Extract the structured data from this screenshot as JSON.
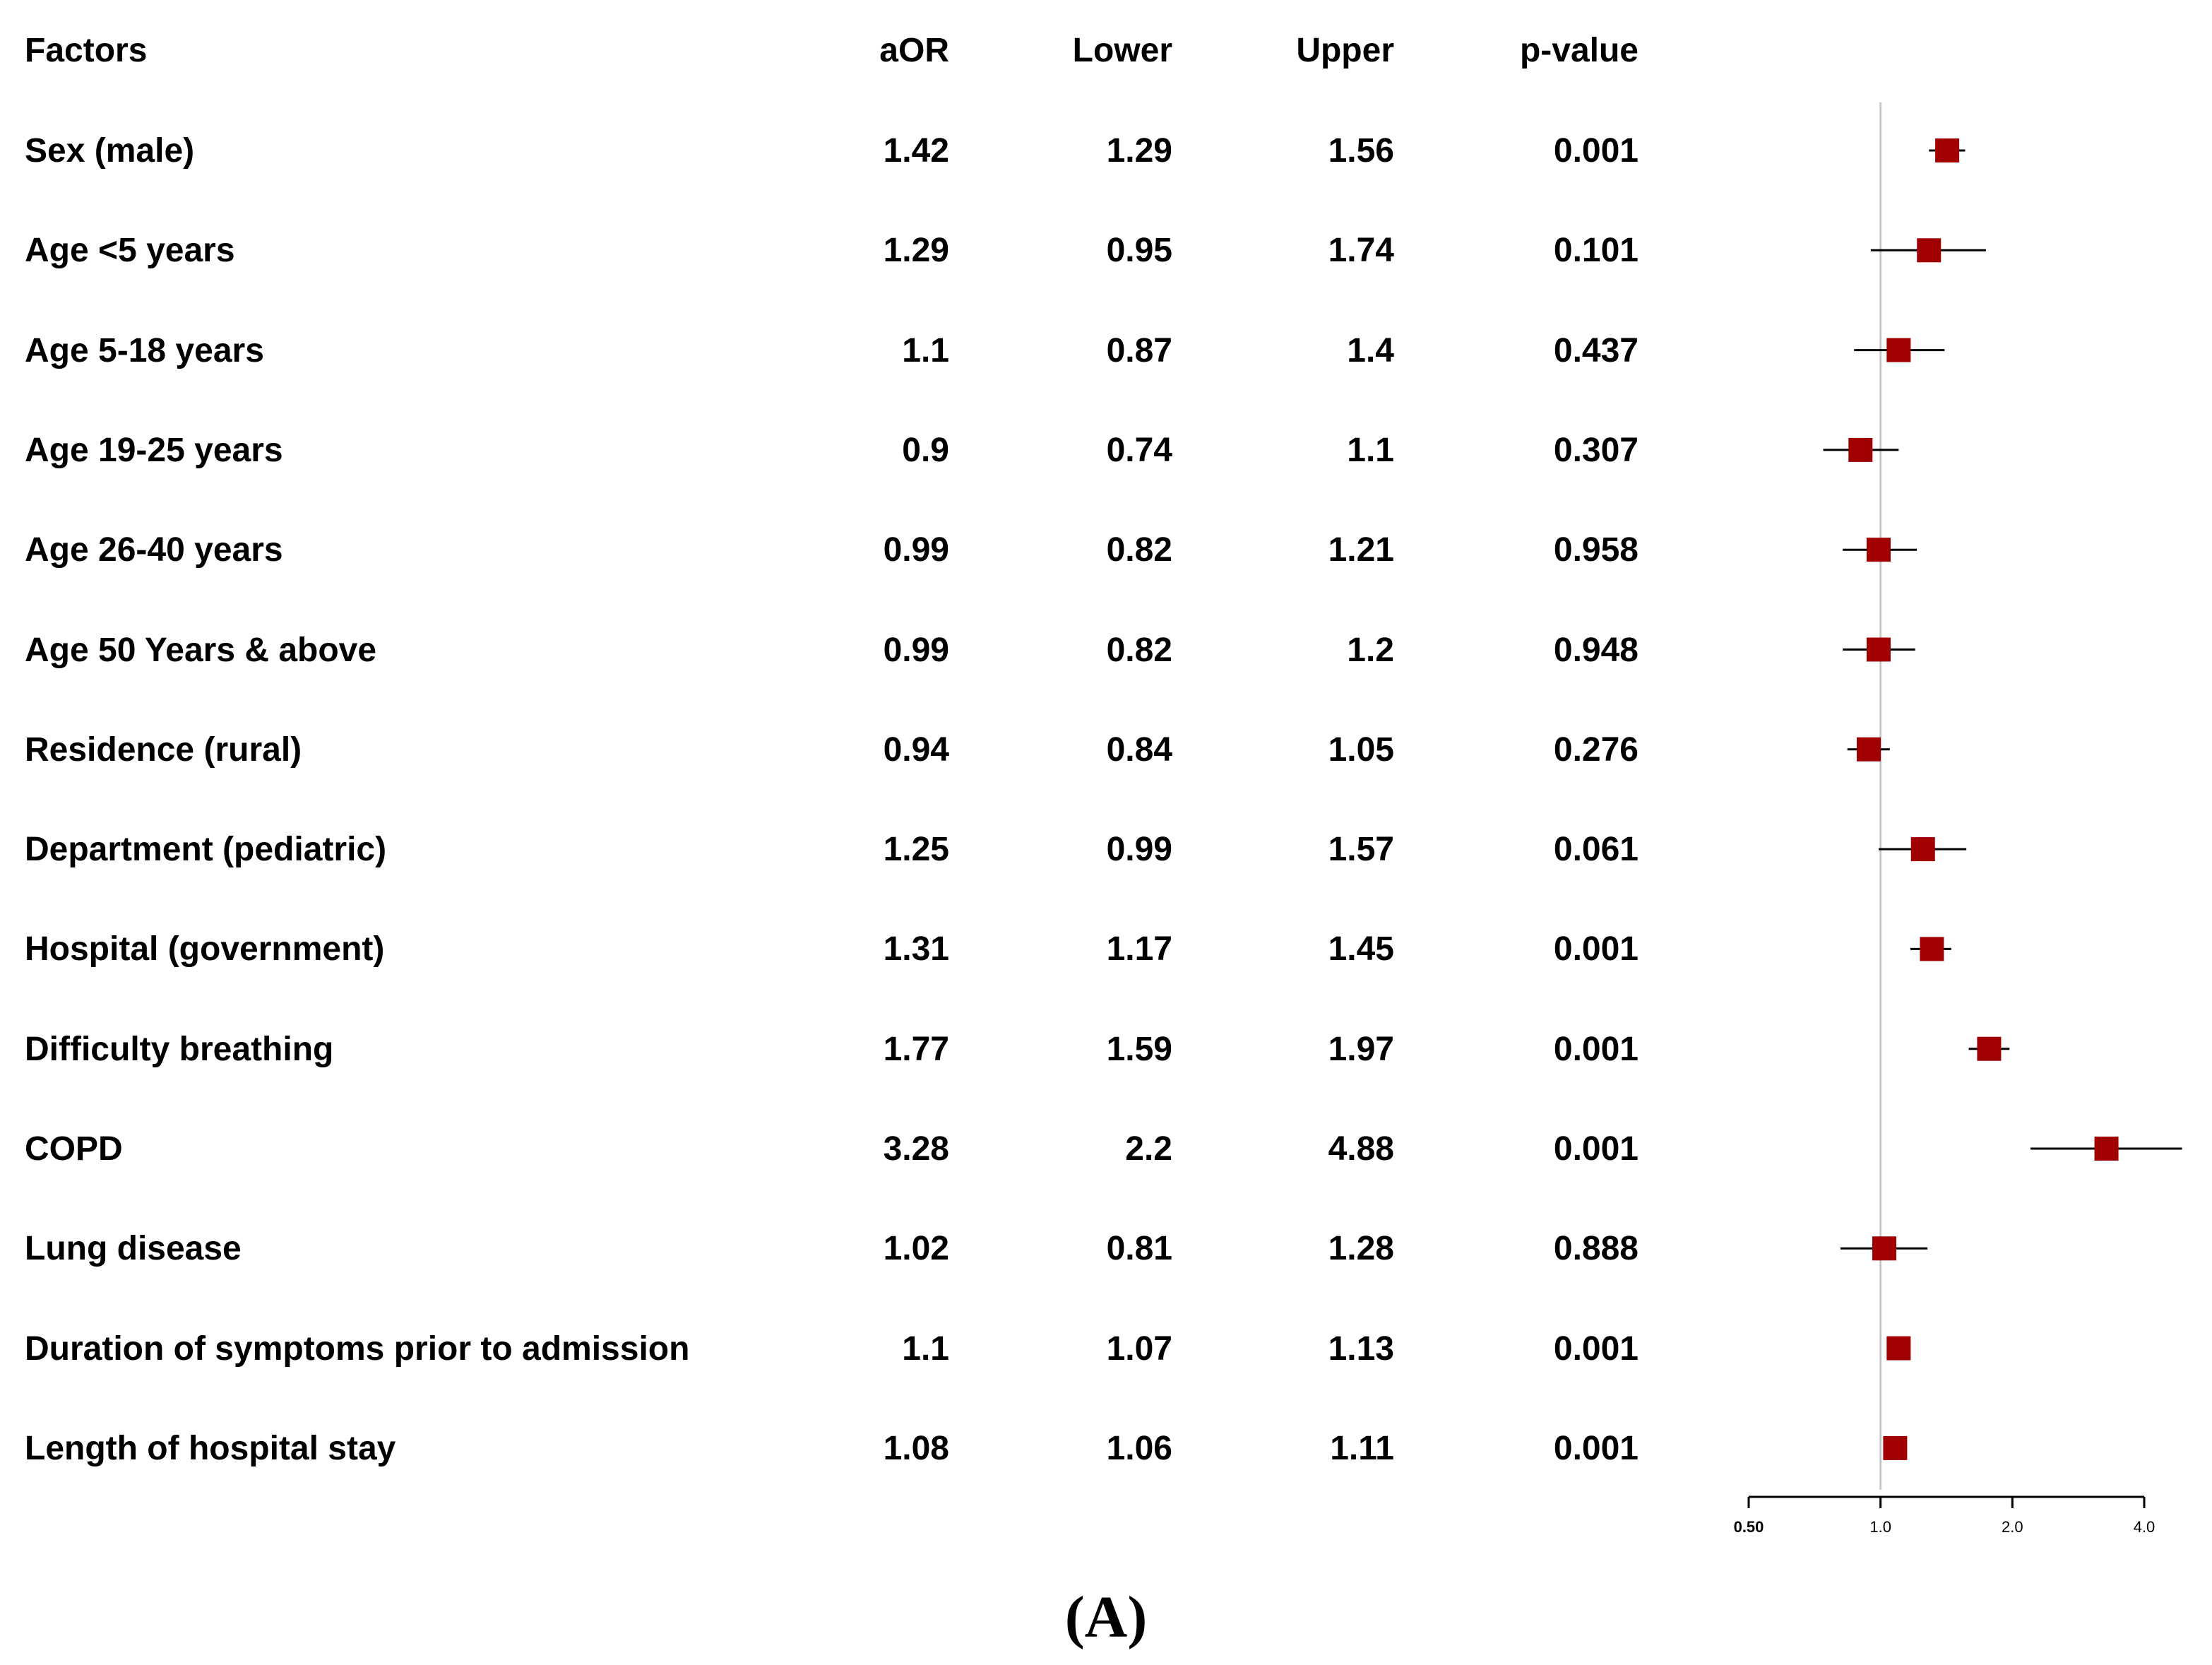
{
  "table": {
    "headers": {
      "factors": "Factors",
      "aor": "aOR",
      "lower": "Lower",
      "upper": "Upper",
      "pvalue": "p-value"
    },
    "rows": [
      {
        "factor": "Sex (male)",
        "aor": "1.42",
        "lower": "1.29",
        "upper": "1.56",
        "p": "0.001"
      },
      {
        "factor": "Age <5 years",
        "aor": "1.29",
        "lower": "0.95",
        "upper": "1.74",
        "p": "0.101"
      },
      {
        "factor": "Age 5-18 years",
        "aor": "1.1",
        "lower": "0.87",
        "upper": "1.4",
        "p": "0.437"
      },
      {
        "factor": "Age 19-25 years",
        "aor": "0.9",
        "lower": "0.74",
        "upper": "1.1",
        "p": "0.307"
      },
      {
        "factor": "Age 26-40 years",
        "aor": "0.99",
        "lower": "0.82",
        "upper": "1.21",
        "p": "0.958"
      },
      {
        "factor": "Age 50 Years & above",
        "aor": "0.99",
        "lower": "0.82",
        "upper": "1.2",
        "p": "0.948"
      },
      {
        "factor": "Residence (rural)",
        "aor": "0.94",
        "lower": "0.84",
        "upper": "1.05",
        "p": "0.276"
      },
      {
        "factor": "Department (pediatric)",
        "aor": "1.25",
        "lower": "0.99",
        "upper": "1.57",
        "p": "0.061"
      },
      {
        "factor": "Hospital (government)",
        "aor": "1.31",
        "lower": "1.17",
        "upper": "1.45",
        "p": "0.001"
      },
      {
        "factor": "Difficulty breathing",
        "aor": "1.77",
        "lower": "1.59",
        "upper": "1.97",
        "p": "0.001"
      },
      {
        "factor": "COPD",
        "aor": "3.28",
        "lower": "2.2",
        "upper": "4.88",
        "p": "0.001"
      },
      {
        "factor": "Lung disease",
        "aor": "1.02",
        "lower": "0.81",
        "upper": "1.28",
        "p": "0.888"
      },
      {
        "factor": "Duration of symptoms prior to admission",
        "aor": "1.1",
        "lower": "1.07",
        "upper": "1.13",
        "p": "0.001"
      },
      {
        "factor": "Length of hospital stay",
        "aor": "1.08",
        "lower": "1.06",
        "upper": "1.11",
        "p": "0.001"
      }
    ]
  },
  "chart_data": {
    "type": "forest",
    "scale": "log",
    "xlim": [
      0.5,
      4.0
    ],
    "ticks": [
      "0.50",
      "1.0",
      "2.0",
      "4.0"
    ],
    "tick_values": [
      0.5,
      1.0,
      2.0,
      4.0
    ],
    "reference_line": 1.0,
    "categories": [
      "Sex (male)",
      "Age <5 years",
      "Age 5-18 years",
      "Age 19-25 years",
      "Age 26-40 years",
      "Age 50 Years & above",
      "Residence (rural)",
      "Department (pediatric)",
      "Hospital (government)",
      "Difficulty breathing",
      "COPD",
      "Lung disease",
      "Duration of symptoms prior to admission",
      "Length of hospital stay"
    ],
    "estimate": [
      1.42,
      1.29,
      1.1,
      0.9,
      0.99,
      0.99,
      0.94,
      1.25,
      1.31,
      1.77,
      3.28,
      1.02,
      1.1,
      1.08
    ],
    "lower": [
      1.29,
      0.95,
      0.87,
      0.74,
      0.82,
      0.82,
      0.84,
      0.99,
      1.17,
      1.59,
      2.2,
      0.81,
      1.07,
      1.06
    ],
    "upper": [
      1.56,
      1.74,
      1.4,
      1.1,
      1.21,
      1.2,
      1.05,
      1.57,
      1.45,
      1.97,
      4.88,
      1.28,
      1.13,
      1.11
    ],
    "colors": {
      "marker": "#a00000",
      "ci": "#000000",
      "refline": "#c8c8c8",
      "axis": "#000000"
    }
  },
  "panel_label": "(A)"
}
